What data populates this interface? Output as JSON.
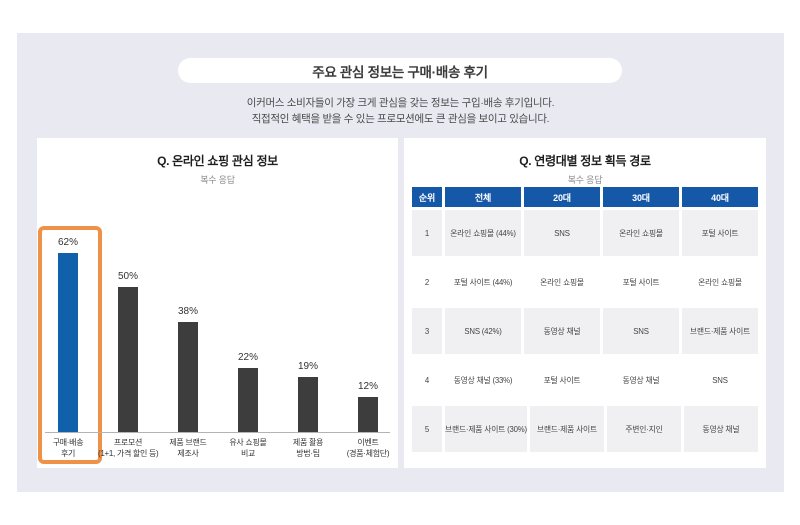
{
  "page": {
    "title": "주요 관심 정보는 구매·배송 후기",
    "subtitle_line1": "이커머스 소비자들이 가장 크게 관심을 갖는 정보는 구입·배송 후기입니다.",
    "subtitle_line2": "직접적인 혜택을 받을 수 있는 프로모션에도 큰 관심을 보이고 있습니다."
  },
  "colors": {
    "card_bg": "#e9eaf1",
    "panel_bg": "#ffffff",
    "bar_highlight_blue": "#1160ab",
    "bar_default_gray": "#3d3d3d",
    "highlight_orange": "#ef9147",
    "table_header_blue": "#1658a8",
    "table_row_alt": "#f0f0f2"
  },
  "chart_panel": {
    "title": "Q. 온라인 쇼핑 관심 정보",
    "subtitle": "복수 응답"
  },
  "chart_data": {
    "type": "bar",
    "title": "Q. 온라인 쇼핑 관심 정보",
    "subtitle": "복수 응답",
    "unit": "%",
    "categories": [
      "구매·배송 후기",
      "프로모션 (1+1, 가격 할인 등)",
      "제품 브랜드·제조사",
      "유사 쇼핑몰 비교",
      "제품 활용 방법·팁",
      "이벤트 (경품·체험단)"
    ],
    "category_lines": [
      [
        "구매·배송",
        "후기"
      ],
      [
        "프로모션",
        "(1+1, 가격 할인 등)"
      ],
      [
        "제품 브랜드",
        "제조사"
      ],
      [
        "유사 쇼핑몰",
        "비교"
      ],
      [
        "제품 활용",
        "방법·팁"
      ],
      [
        "이벤트",
        "(경품·체험단)"
      ]
    ],
    "values": [
      62,
      50,
      38,
      22,
      19,
      12
    ],
    "value_labels": [
      "62%",
      "50%",
      "38%",
      "22%",
      "19%",
      "12%"
    ],
    "highlighted_index": 0,
    "ylim": [
      0,
      70
    ],
    "grid": false,
    "legend_position": "none"
  },
  "table_panel": {
    "title": "Q. 연령대별 정보 획득 경로",
    "subtitle": "복수 응답",
    "columns": [
      "순위",
      "전체",
      "20대",
      "30대",
      "40대"
    ],
    "rows": [
      [
        "1",
        "온라인 쇼핑몰 (44%)",
        "SNS",
        "온라인 쇼핑몰",
        "포털 사이트"
      ],
      [
        "2",
        "포털 사이트 (44%)",
        "온라인 쇼핑몰",
        "포털 사이트",
        "온라인 쇼핑몰"
      ],
      [
        "3",
        "SNS (42%)",
        "동영상 채널",
        "SNS",
        "브랜드·제품 사이트"
      ],
      [
        "4",
        "동영상 채널 (33%)",
        "포털 사이트",
        "동영상 채널",
        "SNS"
      ],
      [
        "5",
        "브랜드·제품 사이트 (30%)",
        "브랜드·제품 사이트",
        "주변인·지인",
        "동영상 채널"
      ]
    ]
  }
}
